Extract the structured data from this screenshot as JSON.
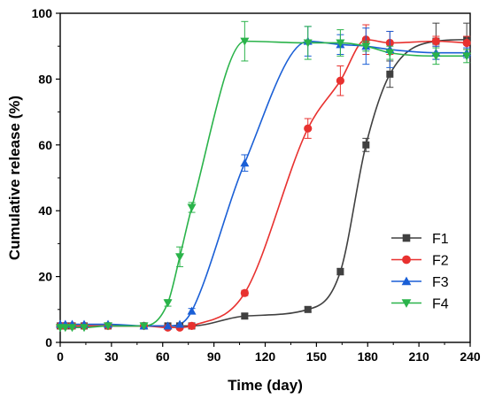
{
  "chart_data": {
    "type": "line",
    "title": "",
    "xlabel": "Time (day)",
    "ylabel": "Cumulative release (%)",
    "xlim": [
      0,
      240
    ],
    "ylim": [
      0,
      100
    ],
    "xticks": [
      0,
      30,
      60,
      90,
      120,
      150,
      180,
      210,
      240
    ],
    "yticks": [
      0,
      20,
      40,
      60,
      80,
      100
    ],
    "grid": false,
    "legend_position": "lower-right",
    "series": [
      {
        "name": "F1",
        "color": "#404040",
        "marker": "square",
        "x": [
          0,
          3,
          7,
          14,
          28,
          49,
          63,
          70,
          77,
          108,
          145,
          164,
          179,
          193,
          220,
          238
        ],
        "y": [
          5.0,
          5.0,
          5.0,
          5.0,
          5.0,
          5.0,
          5.0,
          5.0,
          5.0,
          8.0,
          10.0,
          21.5,
          60.0,
          81.5,
          91.5,
          92.0
        ],
        "err": [
          0.5,
          0.5,
          0.5,
          0.5,
          0.5,
          0.5,
          0.5,
          0.5,
          0.5,
          0.8,
          0.8,
          1.0,
          2.0,
          4.0,
          5.5,
          5.0
        ]
      },
      {
        "name": "F2",
        "color": "#e8312f",
        "marker": "circle",
        "x": [
          0,
          3,
          7,
          14,
          28,
          49,
          63,
          70,
          77,
          108,
          145,
          164,
          179,
          193,
          220,
          238
        ],
        "y": [
          5.0,
          5.0,
          5.0,
          5.0,
          5.0,
          5.0,
          4.5,
          4.5,
          5.0,
          15.0,
          65.0,
          79.5,
          92.0,
          91.0,
          91.5,
          91.0
        ],
        "err": [
          0.5,
          0.5,
          0.5,
          0.5,
          0.5,
          0.5,
          0.5,
          0.5,
          0.5,
          0.8,
          3.0,
          4.5,
          4.5,
          3.5,
          1.5,
          2.0
        ]
      },
      {
        "name": "F3",
        "color": "#1a5fd6",
        "marker": "triangle-up",
        "x": [
          0,
          3,
          7,
          14,
          28,
          49,
          63,
          70,
          77,
          108,
          145,
          164,
          179,
          193,
          220,
          238
        ],
        "y": [
          5.5,
          5.5,
          5.5,
          5.5,
          5.5,
          5.0,
          5.0,
          5.5,
          9.5,
          54.5,
          91.5,
          90.5,
          90.0,
          89.0,
          88.0,
          88.0
        ],
        "err": [
          0.5,
          0.5,
          0.5,
          0.5,
          0.5,
          0.5,
          0.5,
          0.5,
          0.8,
          2.5,
          4.5,
          3.0,
          5.5,
          5.5,
          2.0,
          1.5
        ]
      },
      {
        "name": "F4",
        "color": "#2ab34a",
        "marker": "triangle-down",
        "x": [
          0,
          3,
          7,
          14,
          28,
          49,
          63,
          70,
          77,
          108,
          145,
          164,
          179,
          193,
          220,
          238
        ],
        "y": [
          4.5,
          4.5,
          4.5,
          4.5,
          5.0,
          5.0,
          12.0,
          26.0,
          41.0,
          91.5,
          91.0,
          91.0,
          90.0,
          88.0,
          87.0,
          87.0
        ],
        "err": [
          0.5,
          0.5,
          0.5,
          0.5,
          0.5,
          0.5,
          1.0,
          3.0,
          1.5,
          6.0,
          5.0,
          4.0,
          1.5,
          2.0,
          2.5,
          2.0
        ]
      }
    ]
  }
}
